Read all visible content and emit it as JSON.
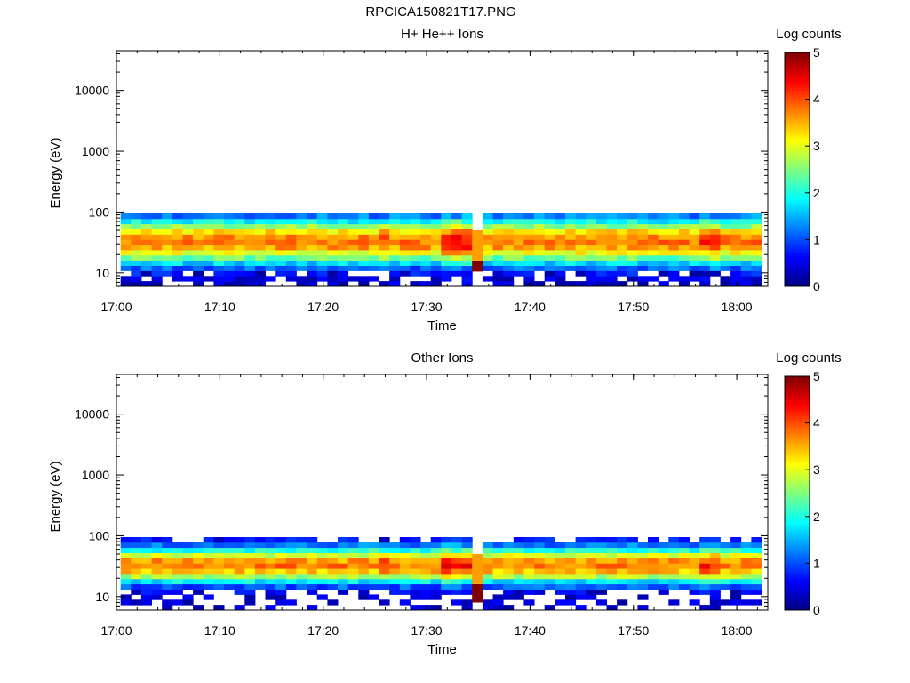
{
  "figure_title": "RPCICA150821T17.PNG",
  "chart_data": [
    {
      "type": "heatmap",
      "title": "H+ He++ Ions",
      "xlabel": "Time",
      "ylabel": "Energy (eV)",
      "y_scale": "log",
      "ylim": [
        6,
        45000
      ],
      "xlim": [
        "17:00",
        "18:03"
      ],
      "x_ticks": [
        "17:00",
        "17:10",
        "17:20",
        "17:30",
        "17:40",
        "17:50",
        "18:00"
      ],
      "y_ticks": [
        10,
        100,
        1000,
        10000
      ],
      "y_tick_labels": [
        "10",
        "100",
        "1000",
        "10000"
      ],
      "colorbar": {
        "label": "Log counts",
        "min": 0,
        "max": 5,
        "ticks": [
          "0",
          "1",
          "2",
          "3",
          "4",
          "5"
        ]
      },
      "data_gap": [
        "17:34",
        "17:34"
      ],
      "energy_range_populated_eV": [
        6,
        95
      ],
      "peak_energy_eV_approx": 33,
      "peak_log_counts_approx": 4.5,
      "notes": "Banded ion spectrum concentrated 20-60 eV with maxima (~4.5) near 17:31-17:33 and 17:57; isolated saturated block (5) at 17:35 near 10-14 eV."
    },
    {
      "type": "heatmap",
      "title": "Other Ions",
      "xlabel": "Time",
      "ylabel": "Energy (eV)",
      "y_scale": "log",
      "ylim": [
        6,
        45000
      ],
      "xlim": [
        "17:00",
        "18:03"
      ],
      "x_ticks": [
        "17:00",
        "17:10",
        "17:20",
        "17:30",
        "17:40",
        "17:50",
        "18:00"
      ],
      "y_ticks": [
        10,
        100,
        1000,
        10000
      ],
      "y_tick_labels": [
        "10",
        "100",
        "1000",
        "10000"
      ],
      "colorbar": {
        "label": "Log counts",
        "min": 0,
        "max": 5,
        "ticks": [
          "0",
          "1",
          "2",
          "3",
          "4",
          "5"
        ]
      },
      "data_gap": [
        "17:34",
        "17:34"
      ],
      "energy_range_populated_eV": [
        6,
        95
      ],
      "peak_energy_eV_approx": 33,
      "peak_log_counts_approx": 4.5,
      "notes": "Narrower band 20-60 eV, sparser low-count pixels above and below; saturated block at 17:35 near 8-15 eV."
    }
  ]
}
